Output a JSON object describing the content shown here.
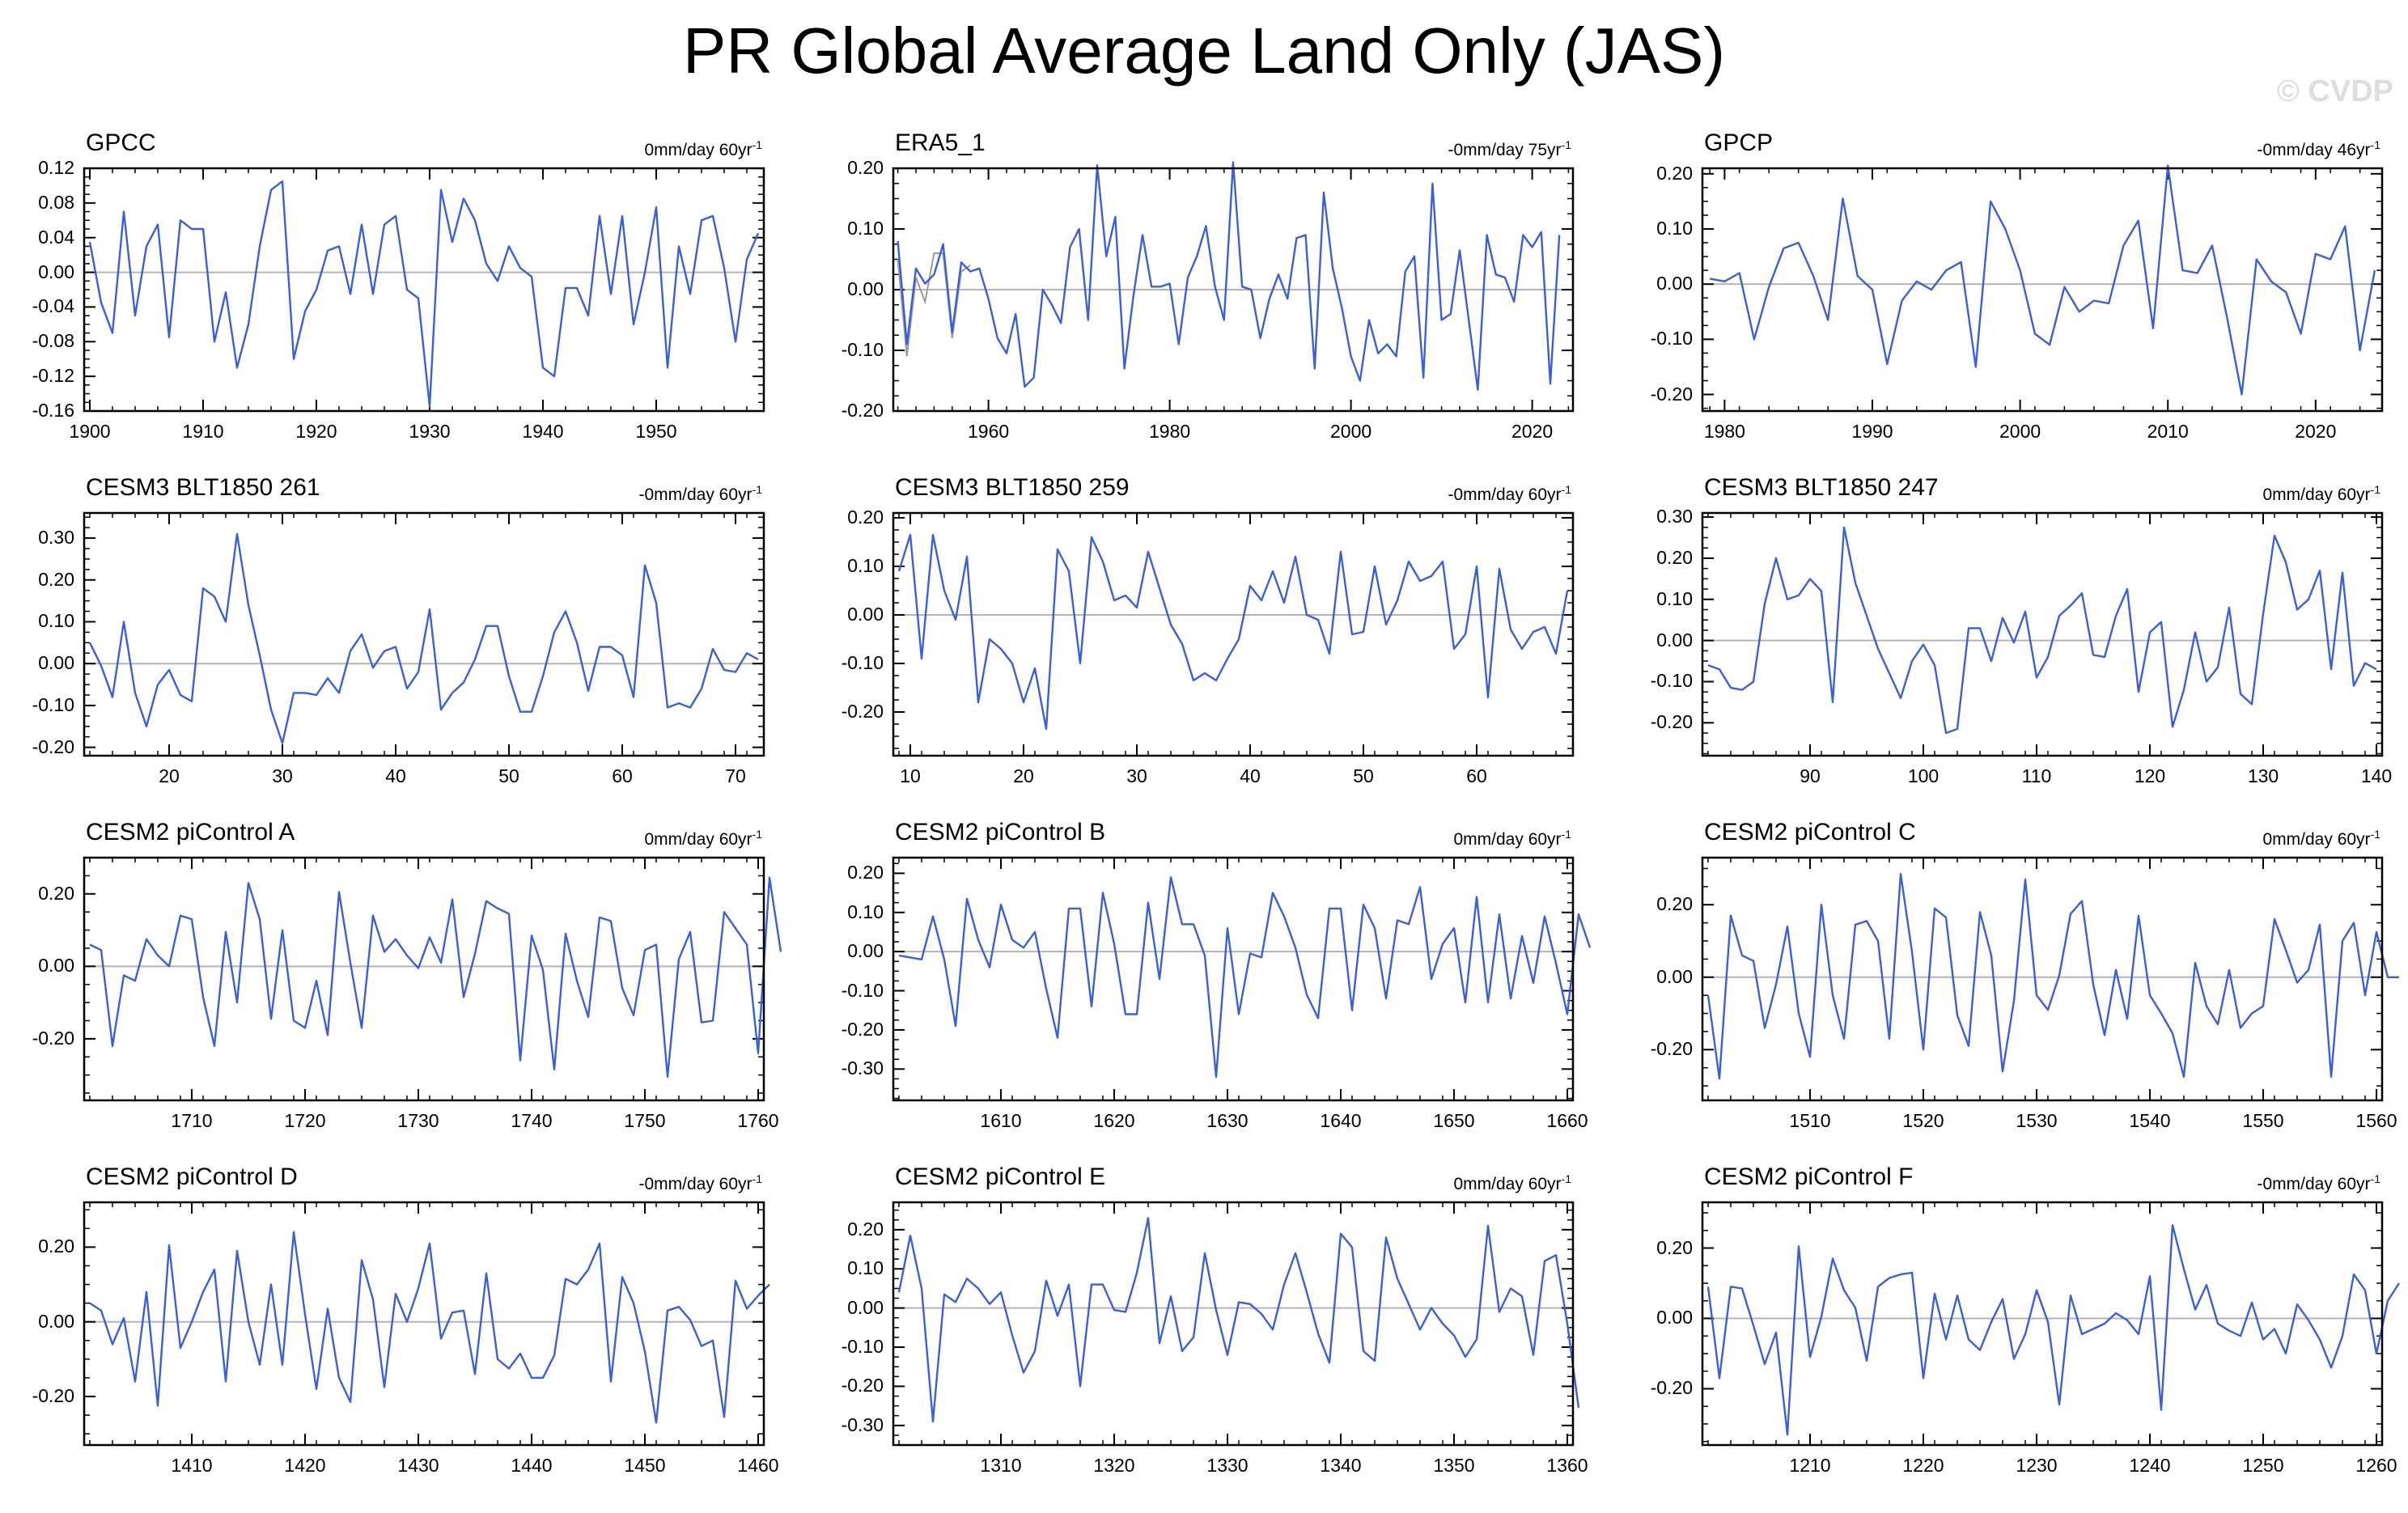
{
  "title": "PR Global Average Land Only (JAS)",
  "watermark": "© CVDP",
  "colors": {
    "series": "#3b5fd6",
    "obs_overlay": "#9a9a9a",
    "zero_line": "#b4b4b4",
    "frame": "#000000"
  },
  "chart_data": [
    {
      "type": "line",
      "name": "GPCC",
      "trend": "0mm/day 60yr",
      "trend_unit_exp": "-1",
      "ylabels": [
        "0.12",
        "0.08",
        "0.04",
        "0.00",
        "-0.04",
        "-0.08",
        "-0.12",
        "-0.16"
      ],
      "yticks": [
        0.12,
        0.08,
        0.04,
        0,
        -0.04,
        -0.08,
        -0.12,
        -0.16
      ],
      "ylim": [
        -0.16,
        0.12
      ],
      "xlim": [
        1899.5,
        1959.5
      ],
      "xticks": [
        1900,
        1910,
        1920,
        1930,
        1940,
        1950
      ],
      "x0": 1900,
      "values": [
        0.035,
        -0.035,
        -0.07,
        0.07,
        -0.05,
        0.03,
        0.055,
        -0.075,
        0.06,
        0.05,
        0.05,
        -0.08,
        -0.023,
        -0.11,
        -0.06,
        0.03,
        0.095,
        0.105,
        -0.1,
        -0.045,
        -0.02,
        0.025,
        0.03,
        -0.025,
        0.055,
        -0.025,
        0.055,
        0.065,
        -0.02,
        -0.03,
        -0.155,
        0.095,
        0.035,
        0.085,
        0.06,
        0.01,
        -0.01,
        0.03,
        0.005,
        -0.005,
        -0.11,
        -0.12,
        -0.018,
        -0.018,
        -0.05,
        0.065,
        -0.025,
        0.065,
        -0.06,
        0,
        0.075,
        -0.11,
        0.03,
        -0.025,
        0.06,
        0.065,
        0.005,
        -0.08,
        0.015,
        0.045
      ]
    },
    {
      "type": "line",
      "name": "ERA5_1",
      "trend": "-0mm/day 75yr",
      "trend_unit_exp": "-1",
      "ylabels": [
        "0.20",
        "0.10",
        "0.00",
        "-0.10",
        "-0.20"
      ],
      "yticks": [
        0.2,
        0.1,
        0,
        -0.1,
        -0.2
      ],
      "ylim": [
        -0.2,
        0.2
      ],
      "xlim": [
        1949.5,
        2024.5
      ],
      "xticks": [
        1960,
        1980,
        2000,
        2020
      ],
      "x0": 1950,
      "values": [
        0.08,
        -0.09,
        0.035,
        0.01,
        0.025,
        0.075,
        -0.07,
        0.045,
        0.03,
        0.035,
        -0.015,
        -0.08,
        -0.105,
        -0.04,
        -0.16,
        -0.145,
        0,
        -0.025,
        -0.055,
        0.07,
        0.1,
        -0.05,
        0.205,
        0.055,
        0.12,
        -0.13,
        -0.01,
        0.09,
        0.005,
        0.005,
        0.01,
        -0.09,
        0.02,
        0.055,
        0.105,
        0.005,
        -0.05,
        0.21,
        0.005,
        0,
        -0.08,
        -0.015,
        0.025,
        -0.015,
        0.085,
        0.09,
        -0.13,
        0.16,
        0.035,
        -0.03,
        -0.11,
        -0.15,
        -0.05,
        -0.105,
        -0.09,
        -0.11,
        0.03,
        0.055,
        -0.145,
        0.175,
        -0.05,
        -0.04,
        0.065,
        -0.05,
        -0.165,
        0.09,
        0.025,
        0.02,
        -0.02,
        0.09,
        0.07,
        0.095,
        -0.155,
        0.09
      ],
      "overlay": {
        "x0": 1950,
        "values": [
          0.05,
          -0.11,
          0.02,
          -0.02,
          0.06,
          0.06,
          -0.08,
          0.03,
          0.04
        ]
      }
    },
    {
      "type": "line",
      "name": "GPCP",
      "trend": "-0mm/day 46yr",
      "trend_unit_exp": "-1",
      "ylabels": [
        "0.20",
        "0.10",
        "0.00",
        "-0.10",
        "-0.20"
      ],
      "yticks": [
        0.2,
        0.1,
        0,
        -0.1,
        -0.2
      ],
      "ylim": [
        -0.23,
        0.21
      ],
      "xlim": [
        1978.5,
        2024.5
      ],
      "xticks": [
        1980,
        1990,
        2000,
        2010,
        2020
      ],
      "x0": 1979,
      "values": [
        0.01,
        0.005,
        0.02,
        -0.1,
        -0.005,
        0.065,
        0.075,
        0.015,
        -0.065,
        0.155,
        0.015,
        -0.01,
        -0.145,
        -0.03,
        0.005,
        -0.01,
        0.025,
        0.04,
        -0.15,
        0.15,
        0.1,
        0.025,
        -0.09,
        -0.11,
        -0.005,
        -0.05,
        -0.03,
        -0.035,
        0.07,
        0.115,
        -0.08,
        0.215,
        0.025,
        0.02,
        0.07,
        -0.06,
        -0.2,
        0.045,
        0.005,
        -0.015,
        -0.09,
        0.055,
        0.045,
        0.105,
        -0.12,
        0.025
      ]
    },
    {
      "type": "line",
      "name": "CESM3 BLT1850 261",
      "trend": "-0mm/day 60yr",
      "trend_unit_exp": "-1",
      "ylabels": [
        "0.30",
        "0.20",
        "0.10",
        "0.00",
        "-0.10",
        "-0.20"
      ],
      "yticks": [
        0.3,
        0.2,
        0.1,
        0,
        -0.1,
        -0.2
      ],
      "ylim": [
        -0.22,
        0.36
      ],
      "xlim": [
        12.5,
        72.5
      ],
      "xticks": [
        20,
        30,
        40,
        50,
        60,
        70
      ],
      "x0": 13,
      "values": [
        0.05,
        -0.005,
        -0.08,
        0.1,
        -0.07,
        -0.15,
        -0.05,
        -0.015,
        -0.075,
        -0.09,
        0.18,
        0.16,
        0.1,
        0.31,
        0.14,
        0.02,
        -0.11,
        -0.19,
        -0.07,
        -0.07,
        -0.075,
        -0.035,
        -0.07,
        0.03,
        0.07,
        -0.01,
        0.03,
        0.04,
        -0.06,
        -0.02,
        0.13,
        -0.11,
        -0.07,
        -0.045,
        0.01,
        0.09,
        0.09,
        -0.03,
        -0.115,
        -0.115,
        -0.03,
        0.075,
        0.125,
        0.05,
        -0.065,
        0.04,
        0.04,
        0.02,
        -0.08,
        0.235,
        0.145,
        -0.105,
        -0.095,
        -0.105,
        -0.06,
        0.035,
        -0.015,
        -0.02,
        0.025,
        0.01
      ]
    },
    {
      "type": "line",
      "name": "CESM3 BLT1850 259",
      "trend": "-0mm/day 60yr",
      "trend_unit_exp": "-1",
      "ylabels": [
        "0.20",
        "0.10",
        "0.00",
        "-0.10",
        "-0.20"
      ],
      "yticks": [
        0.2,
        0.1,
        0,
        -0.1,
        -0.2
      ],
      "ylim": [
        -0.29,
        0.21
      ],
      "xlim": [
        8.5,
        68.5
      ],
      "xticks": [
        10,
        20,
        30,
        40,
        50,
        60
      ],
      "x0": 9,
      "values": [
        0.09,
        0.165,
        -0.09,
        0.165,
        0.05,
        -0.01,
        0.12,
        -0.18,
        -0.05,
        -0.07,
        -0.1,
        -0.18,
        -0.11,
        -0.235,
        0.135,
        0.09,
        -0.1,
        0.16,
        0.11,
        0.03,
        0.04,
        0.015,
        0.13,
        0.055,
        -0.02,
        -0.06,
        -0.135,
        -0.12,
        -0.135,
        -0.09,
        -0.05,
        0.06,
        0.03,
        0.09,
        0.025,
        0.12,
        0,
        -0.01,
        -0.08,
        0.13,
        -0.04,
        -0.035,
        0.1,
        -0.02,
        0.03,
        0.11,
        0.07,
        0.08,
        0.11,
        -0.07,
        -0.04,
        0.1,
        -0.17,
        0.095,
        -0.03,
        -0.07,
        -0.035,
        -0.025,
        -0.08,
        0.05
      ]
    },
    {
      "type": "line",
      "name": "CESM3 BLT1850 247",
      "trend": "0mm/day 60yr",
      "trend_unit_exp": "-1",
      "ylabels": [
        "0.30",
        "0.20",
        "0.10",
        "0.00",
        "-0.10",
        "-0.20"
      ],
      "yticks": [
        0.3,
        0.2,
        0.1,
        0,
        -0.1,
        -0.2
      ],
      "ylim": [
        -0.28,
        0.31
      ],
      "xlim": [
        80.5,
        140.5
      ],
      "xticks": [
        90,
        100,
        110,
        120,
        130,
        140
      ],
      "x0": 81,
      "values": [
        -0.06,
        -0.07,
        -0.115,
        -0.12,
        -0.1,
        0.09,
        0.2,
        0.1,
        0.11,
        0.15,
        0.12,
        -0.15,
        0.275,
        0.14,
        0.06,
        -0.02,
        -0.08,
        -0.14,
        -0.05,
        -0.01,
        -0.06,
        -0.225,
        -0.215,
        0.03,
        0.03,
        -0.05,
        0.055,
        -0.005,
        0.07,
        -0.09,
        -0.04,
        0.06,
        0.085,
        0.115,
        -0.035,
        -0.04,
        0.06,
        0.125,
        -0.125,
        0.02,
        0.045,
        -0.21,
        -0.12,
        0.02,
        -0.1,
        -0.065,
        0.08,
        -0.13,
        -0.155,
        0.065,
        0.255,
        0.19,
        0.075,
        0.1,
        0.17,
        -0.07,
        0.165,
        -0.11,
        -0.055,
        -0.07
      ]
    },
    {
      "type": "line",
      "name": "CESM2 piControl A",
      "trend": "0mm/day 60yr",
      "trend_unit_exp": "-1",
      "ylabels": [
        "0.20",
        "0.00",
        "-0.20"
      ],
      "yticks": [
        0.2,
        0,
        -0.2
      ],
      "ylim": [
        -0.37,
        0.3
      ],
      "xlim": [
        1700.5,
        1760.5
      ],
      "xticks": [
        1710,
        1720,
        1730,
        1740,
        1750,
        1760
      ],
      "x0": 1701,
      "values": [
        0.06,
        0.045,
        -0.22,
        -0.025,
        -0.04,
        0.075,
        0.03,
        0,
        0.14,
        0.13,
        -0.085,
        -0.22,
        0.095,
        -0.1,
        0.23,
        0.13,
        -0.145,
        0.1,
        -0.15,
        -0.17,
        -0.04,
        -0.19,
        0.205,
        0.01,
        -0.17,
        0.14,
        0.04,
        0.075,
        0.03,
        -0.005,
        0.08,
        0.01,
        0.185,
        -0.085,
        0.035,
        0.18,
        0.16,
        0.145,
        -0.26,
        0.085,
        -0.01,
        -0.285,
        0.09,
        -0.04,
        -0.14,
        0.135,
        0.125,
        -0.06,
        -0.135,
        0.045,
        0.06,
        -0.305,
        0.02,
        0.095,
        -0.155,
        -0.15,
        0.15,
        0.105,
        0.06,
        -0.24,
        0.245,
        0.04
      ]
    },
    {
      "type": "line",
      "name": "CESM2 piControl B",
      "trend": "0mm/day 60yr",
      "trend_unit_exp": "-1",
      "ylabels": [
        "0.20",
        "0.10",
        "0.00",
        "-0.10",
        "-0.20",
        "-0.30"
      ],
      "yticks": [
        0.2,
        0.1,
        0,
        -0.1,
        -0.2,
        -0.3
      ],
      "ylim": [
        -0.38,
        0.24
      ],
      "xlim": [
        1600.5,
        1660.5
      ],
      "xticks": [
        1610,
        1620,
        1630,
        1640,
        1650,
        1660
      ],
      "x0": 1601,
      "values": [
        -0.01,
        -0.015,
        -0.02,
        0.09,
        -0.02,
        -0.19,
        0.135,
        0.03,
        -0.04,
        0.12,
        0.03,
        0.01,
        0.05,
        -0.095,
        -0.22,
        0.11,
        0.11,
        -0.14,
        0.15,
        0.02,
        -0.16,
        -0.16,
        0.125,
        -0.07,
        0.19,
        0.07,
        0.07,
        -0.01,
        -0.32,
        0.06,
        -0.16,
        -0.005,
        -0.015,
        0.15,
        0.09,
        0.01,
        -0.11,
        -0.17,
        0.11,
        0.11,
        -0.15,
        0.12,
        0.06,
        -0.12,
        0.08,
        0.07,
        0.165,
        -0.07,
        0.02,
        0.06,
        -0.13,
        0.14,
        -0.13,
        0.095,
        -0.12,
        0.04,
        -0.08,
        0.09,
        -0.03,
        -0.16,
        0.095,
        0.01
      ]
    },
    {
      "type": "line",
      "name": "CESM2 piControl C",
      "trend": "0mm/day 60yr",
      "trend_unit_exp": "-1",
      "ylabels": [
        "0.20",
        "0.00",
        "-0.20"
      ],
      "yticks": [
        0.2,
        0,
        -0.2
      ],
      "ylim": [
        -0.34,
        0.33
      ],
      "xlim": [
        1500.5,
        1560.5
      ],
      "xticks": [
        1510,
        1520,
        1530,
        1540,
        1550,
        1560
      ],
      "x0": 1501,
      "values": [
        -0.05,
        -0.28,
        0.17,
        0.06,
        0.045,
        -0.14,
        -0.02,
        0.14,
        -0.1,
        -0.22,
        0.2,
        -0.05,
        -0.17,
        0.145,
        0.155,
        0.1,
        -0.17,
        0.285,
        0.07,
        -0.2,
        0.19,
        0.165,
        -0.105,
        -0.19,
        0.18,
        0.06,
        -0.26,
        -0.065,
        0.27,
        -0.05,
        -0.09,
        0.005,
        0.175,
        0.21,
        -0.02,
        -0.16,
        0.02,
        -0.115,
        0.17,
        -0.05,
        -0.1,
        -0.155,
        -0.275,
        0.04,
        -0.08,
        -0.13,
        0.02,
        -0.14,
        -0.1,
        -0.08,
        0.16,
        0.075,
        -0.015,
        0.02,
        0.145,
        -0.275,
        0.1,
        0.15,
        -0.05,
        0.125,
        0,
        0
      ]
    },
    {
      "type": "line",
      "name": "CESM2 piControl D",
      "trend": "-0mm/day 60yr",
      "trend_unit_exp": "-1",
      "ylabels": [
        "0.20",
        "0.00",
        "-0.20"
      ],
      "yticks": [
        0.2,
        0,
        -0.2
      ],
      "ylim": [
        -0.33,
        0.32
      ],
      "xlim": [
        1400.5,
        1460.5
      ],
      "xticks": [
        1410,
        1420,
        1430,
        1440,
        1450,
        1460
      ],
      "x0": 1401,
      "values": [
        0.05,
        0.03,
        -0.06,
        0.01,
        -0.16,
        0.08,
        -0.225,
        0.205,
        -0.07,
        0,
        0.08,
        0.14,
        -0.16,
        0.19,
        0,
        -0.115,
        0.1,
        -0.115,
        0.24,
        0.02,
        -0.18,
        0.035,
        -0.15,
        -0.215,
        0.165,
        0.06,
        -0.175,
        0.075,
        0,
        0.09,
        0.21,
        -0.045,
        0.025,
        0.03,
        -0.14,
        0.13,
        -0.1,
        -0.125,
        -0.085,
        -0.15,
        -0.15,
        -0.09,
        0.115,
        0.1,
        0.14,
        0.21,
        -0.16,
        0.12,
        0.05,
        -0.08,
        -0.27,
        0.03,
        0.04,
        0.005,
        -0.065,
        -0.05,
        -0.255,
        0.11,
        0.035,
        0.07,
        0.1
      ]
    },
    {
      "type": "line",
      "name": "CESM2 piControl E",
      "trend": "0mm/day 60yr",
      "trend_unit_exp": "-1",
      "ylabels": [
        "0.20",
        "0.10",
        "0.00",
        "-0.10",
        "-0.20",
        "-0.30"
      ],
      "yticks": [
        0.2,
        0.1,
        0,
        -0.1,
        -0.2,
        -0.3
      ],
      "ylim": [
        -0.35,
        0.27
      ],
      "xlim": [
        1300.5,
        1360.5
      ],
      "xticks": [
        1310,
        1320,
        1330,
        1340,
        1350,
        1360
      ],
      "x0": 1301,
      "values": [
        0.04,
        0.185,
        0.05,
        -0.29,
        0.035,
        0.015,
        0.075,
        0.05,
        0.01,
        0.04,
        -0.07,
        -0.165,
        -0.11,
        0.07,
        -0.02,
        0.06,
        -0.2,
        0.06,
        0.06,
        -0.005,
        -0.01,
        0.09,
        0.23,
        -0.09,
        0.03,
        -0.11,
        -0.075,
        0.14,
        -0.005,
        -0.12,
        0.015,
        0.01,
        -0.015,
        -0.055,
        0.06,
        0.14,
        0.04,
        -0.065,
        -0.14,
        0.19,
        0.155,
        -0.11,
        -0.135,
        0.18,
        0.075,
        0.01,
        -0.055,
        0,
        -0.04,
        -0.07,
        -0.125,
        -0.08,
        0.21,
        -0.01,
        0.05,
        0.03,
        -0.12,
        0.12,
        0.135,
        -0.04,
        -0.255
      ]
    },
    {
      "type": "line",
      "name": "CESM2 piControl F",
      "trend": "-0mm/day 60yr",
      "trend_unit_exp": "-1",
      "ylabels": [
        "0.20",
        "0.00",
        "-0.20"
      ],
      "yticks": [
        0.2,
        0,
        -0.2
      ],
      "ylim": [
        -0.36,
        0.33
      ],
      "xlim": [
        1200.5,
        1260.5
      ],
      "xticks": [
        1210,
        1220,
        1230,
        1240,
        1250,
        1260
      ],
      "x0": 1201,
      "values": [
        0.09,
        -0.17,
        0.09,
        0.085,
        -0.02,
        -0.13,
        -0.04,
        -0.33,
        0.205,
        -0.11,
        0.005,
        0.17,
        0.08,
        0.03,
        -0.12,
        0.09,
        0.115,
        0.125,
        0.13,
        -0.17,
        0.07,
        -0.06,
        0.065,
        -0.06,
        -0.09,
        -0.01,
        0.055,
        -0.115,
        -0.045,
        0.08,
        -0.01,
        -0.245,
        0.065,
        -0.045,
        -0.03,
        -0.015,
        0.015,
        -0.005,
        -0.045,
        0.12,
        -0.26,
        0.265,
        0.14,
        0.025,
        0.095,
        -0.015,
        -0.035,
        -0.05,
        0.045,
        -0.06,
        -0.03,
        -0.1,
        0.04,
        -0.005,
        -0.06,
        -0.14,
        -0.05,
        0.125,
        0.08,
        -0.1,
        0.05,
        0.1
      ]
    }
  ]
}
